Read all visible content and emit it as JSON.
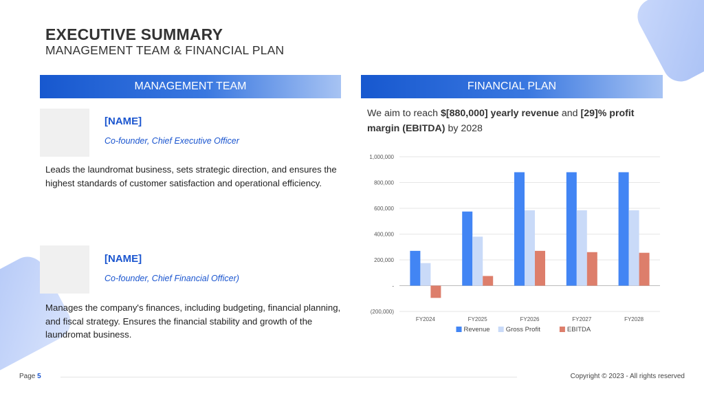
{
  "header": {
    "title": "EXECUTIVE SUMMARY",
    "subtitle": "MANAGEMENT TEAM & FINANCIAL PLAN"
  },
  "management": {
    "heading": "MANAGEMENT TEAM",
    "people": [
      {
        "name": "[NAME]",
        "role": "Co-founder, Chief Executive Officer",
        "description": "Leads the laundromat business, sets strategic direction, and ensures the highest standards of customer satisfaction and operational efficiency."
      },
      {
        "name": "[NAME]",
        "role": "Co-founder, Chief Financial Officer)",
        "description": "Manages the company's finances, including budgeting, financial planning, and fiscal strategy. Ensures the financial stability and growth of the laundromat business."
      }
    ]
  },
  "financial": {
    "heading": "FINANCIAL PLAN",
    "text_pre": "We aim to reach ",
    "text_bold1": "$[880,000] yearly revenue",
    "text_mid": " and ",
    "text_bold2": "[29]% profit margin (EBITDA)",
    "text_post": " by 2028"
  },
  "chart_data": {
    "type": "bar",
    "categories": [
      "FY2024",
      "FY2025",
      "FY2026",
      "FY2027",
      "FY2028"
    ],
    "series": [
      {
        "name": "Revenue",
        "color": "#4285f4",
        "values": [
          270000,
          575000,
          880000,
          880000,
          880000
        ]
      },
      {
        "name": "Gross Profit",
        "color": "#c9daf8",
        "values": [
          175000,
          380000,
          585000,
          585000,
          585000
        ]
      },
      {
        "name": "EBITDA",
        "color": "#dd7e6b",
        "values": [
          -95000,
          75000,
          270000,
          260000,
          255000
        ]
      }
    ],
    "ylim": [
      -200000,
      1000000
    ],
    "yticks": [
      1000000,
      800000,
      600000,
      400000,
      200000,
      0,
      -200000
    ],
    "ytick_labels": [
      "1,000,000",
      "800,000",
      "600,000",
      "400,000",
      "200,000",
      "-",
      "(200,000)"
    ],
    "grid": true,
    "legend_position": "bottom",
    "title": "",
    "xlabel": "",
    "ylabel": ""
  },
  "footer": {
    "page_label": "Page",
    "page_number": "5",
    "copyright": "Copyright © 2023 - All rights reserved"
  }
}
